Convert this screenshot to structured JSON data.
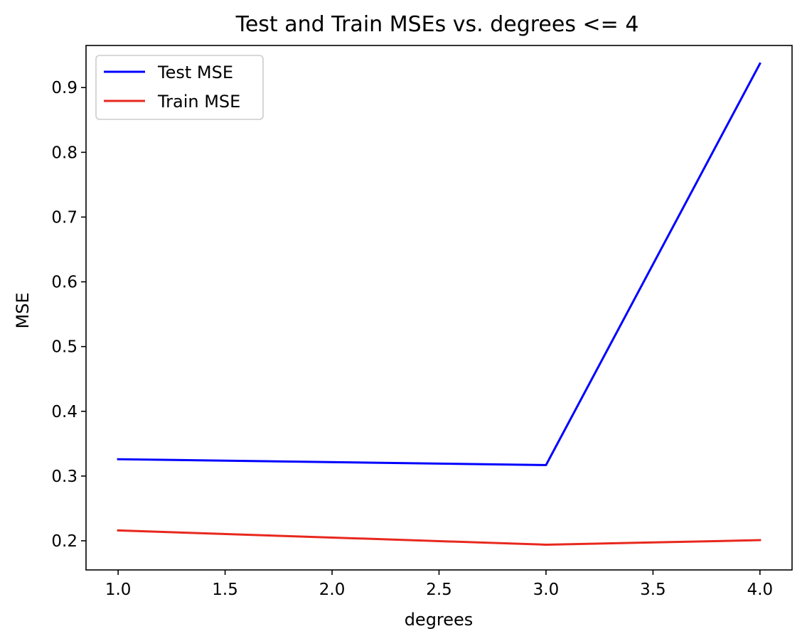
{
  "chart_data": {
    "type": "line",
    "title": "Test and Train MSEs vs. degrees <= 4",
    "xlabel": "degrees",
    "ylabel": "MSE",
    "xlim": [
      0.85,
      4.15
    ],
    "ylim": [
      0.155,
      0.965
    ],
    "xticks": [
      1.0,
      1.5,
      2.0,
      2.5,
      3.0,
      3.5,
      4.0
    ],
    "xtick_labels": [
      "1.0",
      "1.5",
      "2.0",
      "2.5",
      "3.0",
      "3.5",
      "4.0"
    ],
    "yticks": [
      0.2,
      0.3,
      0.4,
      0.5,
      0.6,
      0.7,
      0.8,
      0.9
    ],
    "ytick_labels": [
      "0.2",
      "0.3",
      "0.4",
      "0.5",
      "0.6",
      "0.7",
      "0.8",
      "0.9"
    ],
    "grid": false,
    "legend_position": "top-left",
    "series": [
      {
        "name": "Test MSE",
        "color": "#0000ff",
        "x": [
          1,
          3,
          4
        ],
        "y": [
          0.326,
          0.317,
          0.937
        ]
      },
      {
        "name": "Train MSE",
        "color": "#e8281e",
        "x": [
          1,
          3,
          4
        ],
        "y": [
          0.216,
          0.194,
          0.201
        ]
      }
    ]
  }
}
